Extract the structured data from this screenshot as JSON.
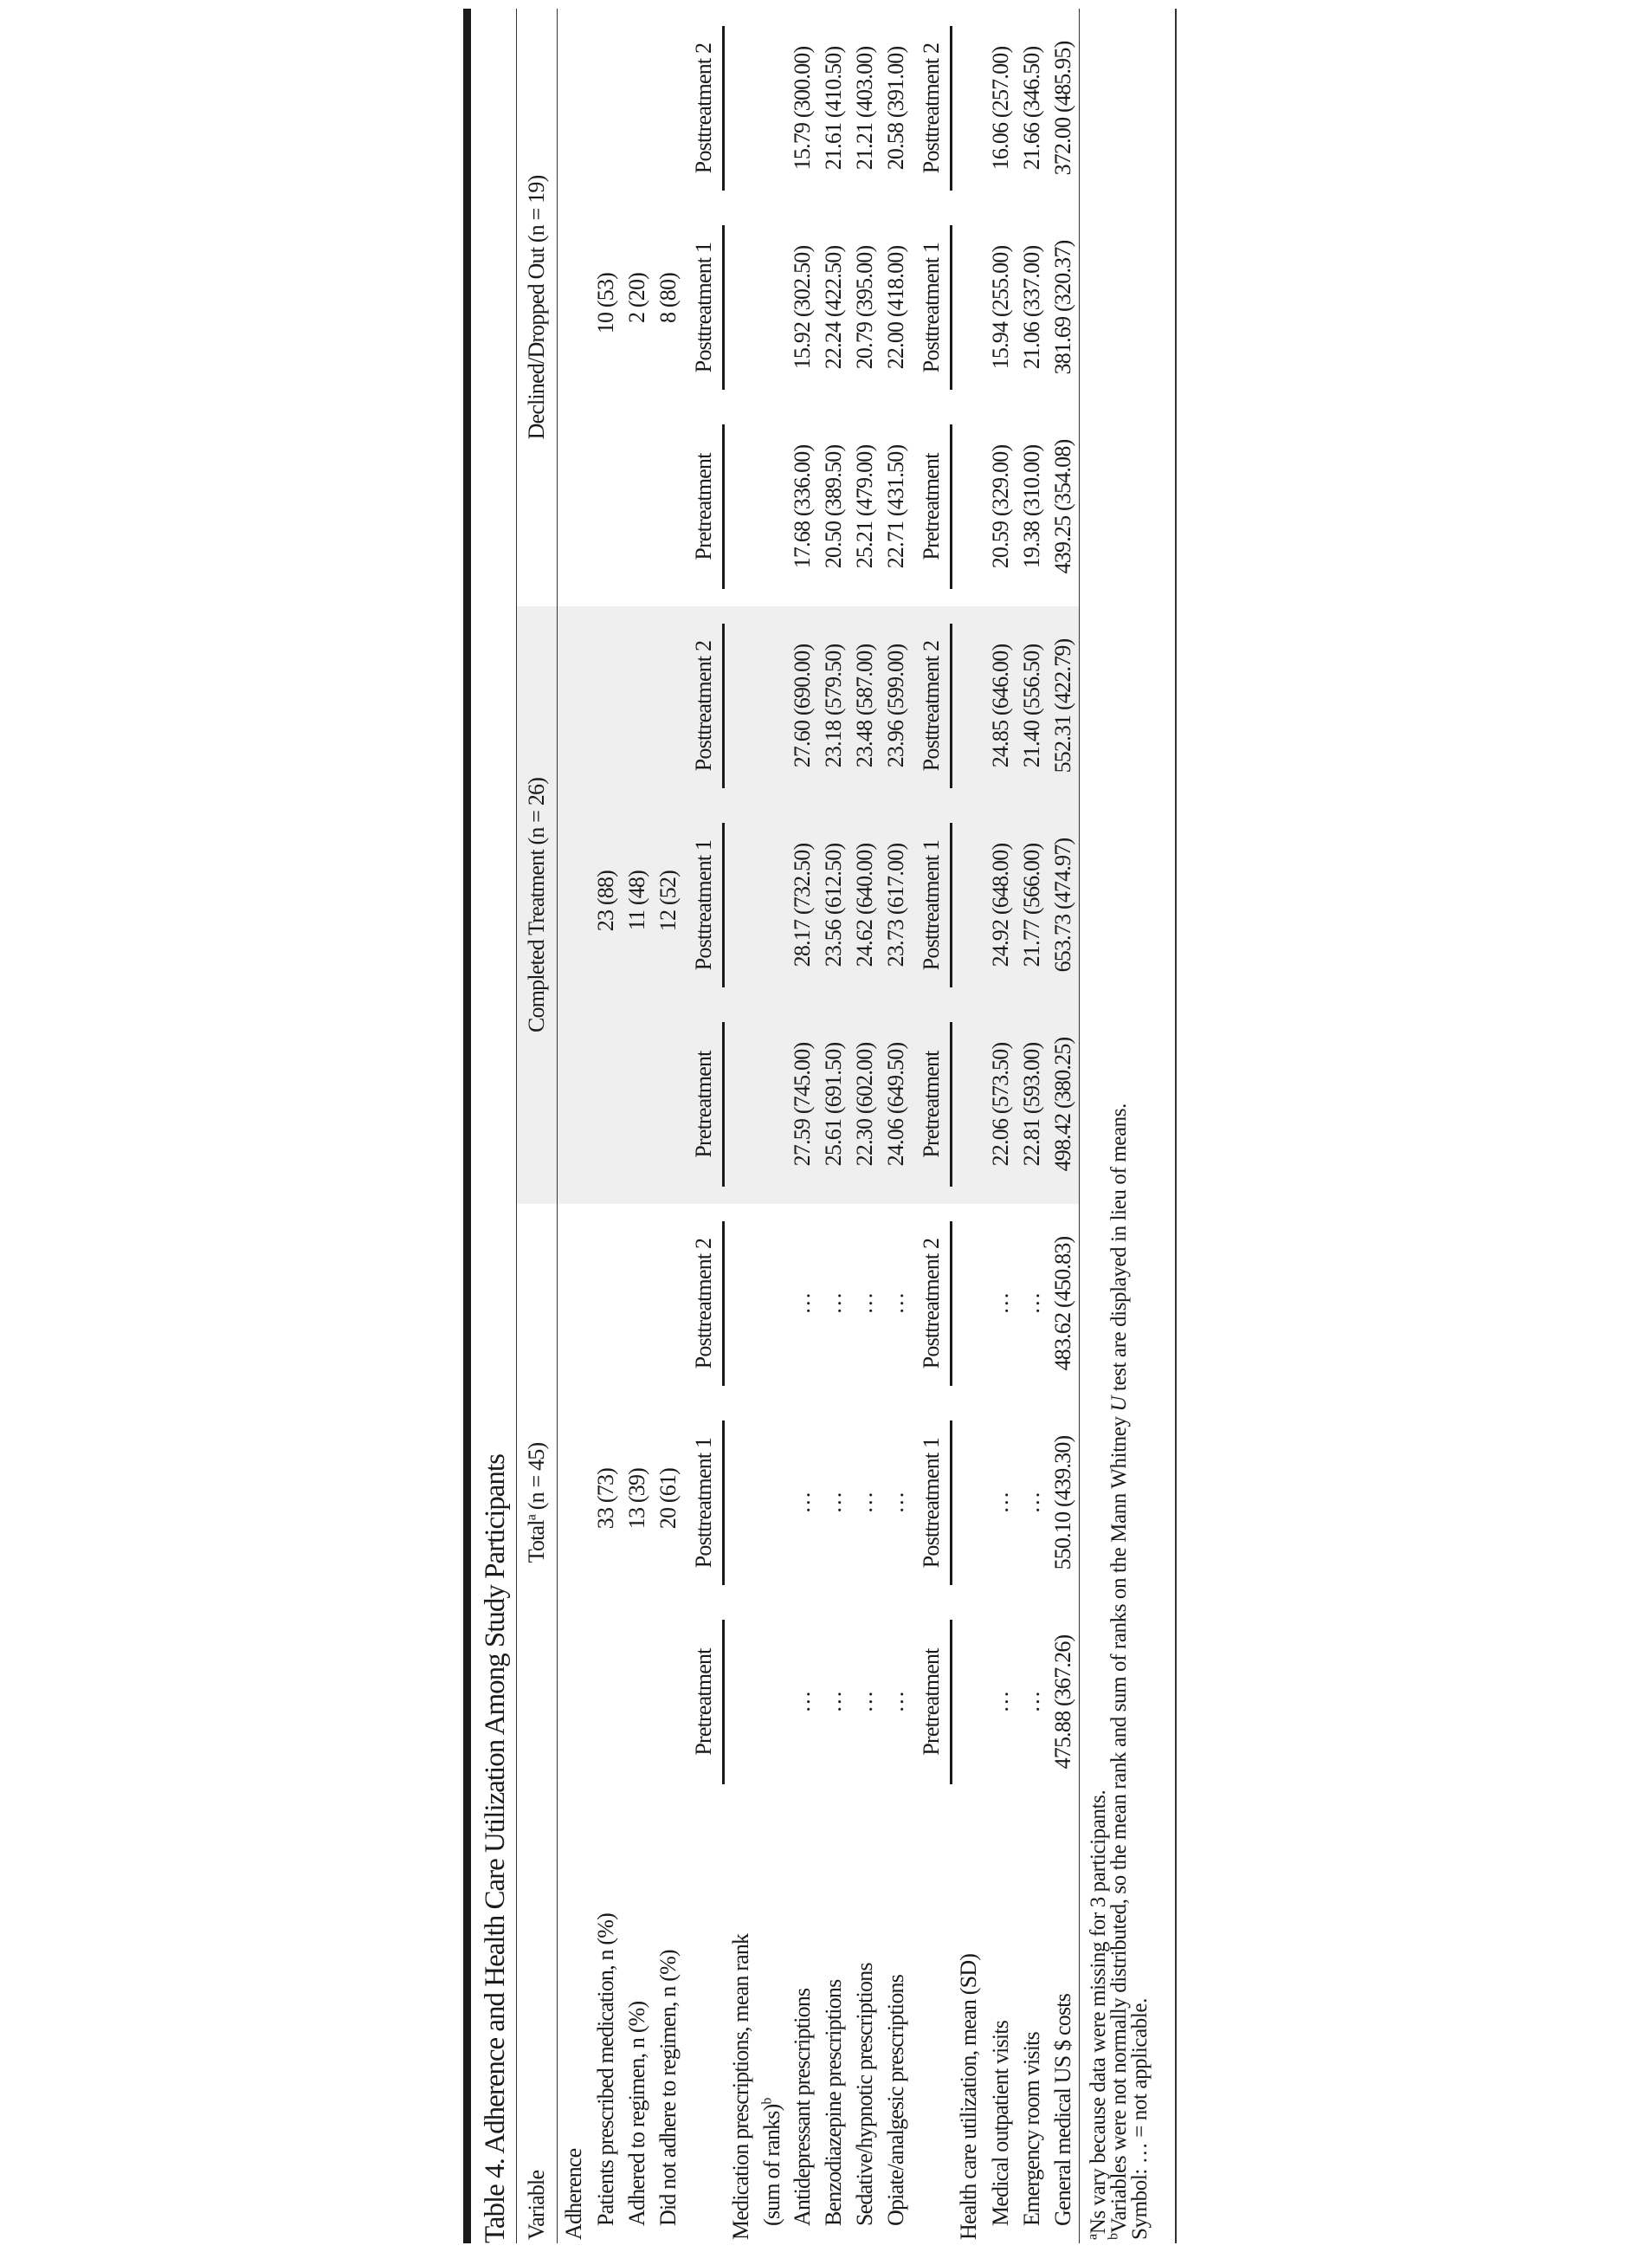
{
  "table": {
    "title": "Table 4. Adherence and Health Care Utilization Among Study Participants",
    "variable_header": "Variable",
    "groups": [
      {
        "label": "Total",
        "sup": "a",
        "n": " (n = 45)"
      },
      {
        "label": "Completed Treatment (n = 26)"
      },
      {
        "label": "Declined/Dropped Out (n = 19)"
      }
    ],
    "subheaders": [
      "Pretreatment",
      "Posttreatment 1",
      "Posttreatment 2"
    ],
    "shaded_group": "Completed Treatment",
    "shade_color": "#efefef",
    "sections": [
      {
        "label": "Adherence",
        "subheaders": false,
        "rows": [
          {
            "label": "Patients prescribed medication, n (%)",
            "values": [
              "",
              "33 (73)",
              "",
              "",
              "23 (88)",
              "",
              "",
              "10 (53)",
              ""
            ]
          },
          {
            "label": "Adhered to regimen, n (%)",
            "values": [
              "",
              "13 (39)",
              "",
              "",
              "11 (48)",
              "",
              "",
              "2 (20)",
              ""
            ]
          },
          {
            "label": "Did not adhere to regimen, n (%)",
            "values": [
              "",
              "20 (61)",
              "",
              "",
              "12 (52)",
              "",
              "",
              "8 (80)",
              ""
            ]
          }
        ]
      },
      {
        "label": "Medication prescriptions, mean rank",
        "label_cont": "(sum of ranks)",
        "label_sup": "b",
        "subheaders": true,
        "rows": [
          {
            "label": "Antidepressant prescriptions",
            "values": [
              "…",
              "…",
              "…",
              "27.59 (745.00)",
              "28.17 (732.50)",
              "27.60 (690.00)",
              "17.68 (336.00)",
              "15.92 (302.50)",
              "15.79 (300.00)"
            ]
          },
          {
            "label": "Benzodiazepine prescriptions",
            "values": [
              "…",
              "…",
              "…",
              "25.61 (691.50)",
              "23.56 (612.50)",
              "23.18 (579.50)",
              "20.50 (389.50)",
              "22.24 (422.50)",
              "21.61 (410.50)"
            ]
          },
          {
            "label": "Sedative/hypnotic prescriptions",
            "values": [
              "…",
              "…",
              "…",
              "22.30 (602.00)",
              "24.62 (640.00)",
              "23.48 (587.00)",
              "25.21 (479.00)",
              "20.79 (395.00)",
              "21.21 (403.00)"
            ]
          },
          {
            "label": "Opiate/analgesic prescriptions",
            "values": [
              "…",
              "…",
              "…",
              "24.06 (649.50)",
              "23.73 (617.00)",
              "23.96 (599.00)",
              "22.71 (431.50)",
              "22.00 (418.00)",
              "20.58 (391.00)"
            ]
          }
        ]
      },
      {
        "label": "Health care utilization, mean (SD)",
        "subheaders": true,
        "rows": [
          {
            "label": "Medical outpatient visits",
            "values": [
              "…",
              "…",
              "…",
              "22.06 (573.50)",
              "24.92 (648.00)",
              "24.85 (646.00)",
              "20.59 (329.00)",
              "15.94 (255.00)",
              "16.06 (257.00)"
            ]
          },
          {
            "label": "Emergency room visits",
            "values": [
              "…",
              "…",
              "…",
              "22.81 (593.00)",
              "21.77 (566.00)",
              "21.40 (556.50)",
              "19.38 (310.00)",
              "21.06 (337.00)",
              "21.66 (346.50)"
            ]
          },
          {
            "label": "General medical US $ costs",
            "values": [
              "475.88 (367.26)",
              "550.10 (439.30)",
              "483.62 (450.83)",
              "498.42 (380.25)",
              "653.73 (474.97)",
              "552.31 (422.79)",
              "439.25 (354.08)",
              "381.69 (320.37)",
              "372.00 (485.95)"
            ]
          }
        ]
      }
    ],
    "footnotes": {
      "a_mark": "a",
      "a_text": "Ns vary because data were missing for 3 participants.",
      "b_mark": "b",
      "b_text_1": "Variables were not normally distributed, so the mean rank and sum of ranks on the Mann Whitney ",
      "b_italic": "U",
      "b_text_2": " test are displayed in lieu of means.",
      "symbol": "Symbol: … = not applicable."
    }
  }
}
